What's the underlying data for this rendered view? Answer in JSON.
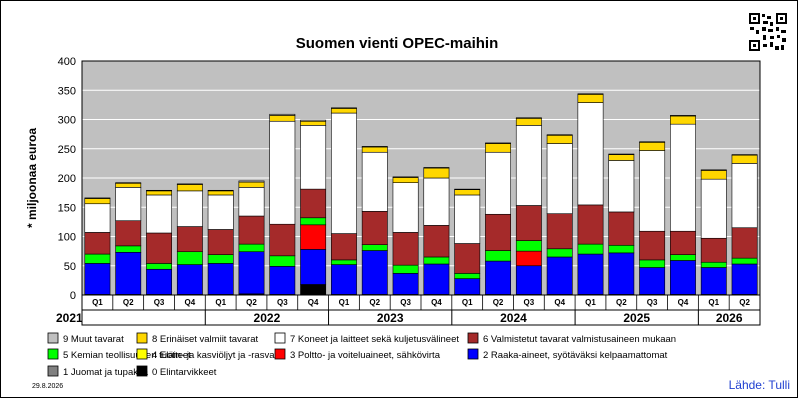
{
  "chart_data": {
    "type": "bar",
    "stacked": true,
    "title": "Suomen vienti OPEC-maihin",
    "ylabel": "* miljoonaa euroa",
    "xlabel": "",
    "ylim": [
      0,
      400
    ],
    "yticks": [
      0,
      50,
      100,
      150,
      200,
      250,
      300,
      350,
      400
    ],
    "grid": true,
    "legend_position": "bottom",
    "categories": [
      "Q1",
      "Q2",
      "Q3",
      "Q4",
      "Q1",
      "Q2",
      "Q3",
      "Q4",
      "Q1",
      "Q2",
      "Q3",
      "Q4",
      "Q1",
      "Q2",
      "Q3",
      "Q4",
      "Q1",
      "Q2",
      "Q3",
      "Q4",
      "Q1",
      "Q2"
    ],
    "years": [
      {
        "label": "2021",
        "start": 0,
        "span": 4
      },
      {
        "label": "2022",
        "start": 4,
        "span": 4
      },
      {
        "label": "2023",
        "start": 8,
        "span": 4
      },
      {
        "label": "2024",
        "start": 12,
        "span": 4
      },
      {
        "label": "2025",
        "start": 16,
        "span": 4
      },
      {
        "label": "2026",
        "start": 20,
        "span": 2
      }
    ],
    "series": [
      {
        "name": "0 Elintarvikkeet",
        "color": "#000000",
        "values": [
          1,
          1,
          1,
          1,
          1,
          2,
          1,
          18,
          1,
          1,
          1,
          1,
          1,
          1,
          1,
          1,
          1,
          1,
          1,
          1,
          1,
          1
        ]
      },
      {
        "name": "1 Juomat ja tupakka",
        "color": "#808080",
        "values": [
          0,
          0,
          0,
          0,
          0,
          0,
          0,
          0,
          0,
          0,
          0,
          0,
          0,
          0,
          0,
          0,
          0,
          0,
          0,
          0,
          0,
          0
        ]
      },
      {
        "name": "2 Raaka-aineet, syötäväksi kelpaamattomat",
        "color": "#0000ff",
        "values": [
          53,
          72,
          43,
          51,
          53,
          72,
          48,
          60,
          51,
          75,
          36,
          52,
          27,
          57,
          49,
          64,
          69,
          71,
          46,
          58,
          46,
          52
        ]
      },
      {
        "name": "3 Poltto- ja voiteluaineet, sähkövirta",
        "color": "#ff0000",
        "values": [
          0,
          0,
          0,
          0,
          0,
          0,
          0,
          42,
          0,
          0,
          0,
          0,
          0,
          0,
          25,
          0,
          0,
          0,
          0,
          0,
          0,
          0
        ]
      },
      {
        "name": "4 Eläin- ja kasviöljyt ja -rasvat",
        "color": "#ffff00",
        "values": [
          0,
          0,
          0,
          0,
          0,
          0,
          0,
          0,
          0,
          0,
          0,
          0,
          0,
          0,
          0,
          0,
          0,
          0,
          0,
          0,
          0,
          0
        ]
      },
      {
        "name": "5 Kemian teollisuuden tuotteet",
        "color": "#00ff00",
        "values": [
          16,
          11,
          10,
          22,
          15,
          13,
          18,
          12,
          8,
          10,
          14,
          12,
          9,
          18,
          18,
          14,
          17,
          13,
          13,
          10,
          9,
          10
        ]
      },
      {
        "name": "6 Valmistetut tavarat valmistusaineen mukaan",
        "color": "#a52a2a",
        "values": [
          37,
          43,
          52,
          43,
          43,
          48,
          54,
          49,
          45,
          57,
          56,
          54,
          51,
          62,
          60,
          60,
          67,
          57,
          49,
          40,
          41,
          52
        ]
      },
      {
        "name": "7 Koneet ja laitteet sekä kuljetusvälineet",
        "color": "#ffffff",
        "values": [
          49,
          57,
          65,
          61,
          59,
          49,
          176,
          109,
          206,
          101,
          85,
          81,
          83,
          106,
          137,
          120,
          175,
          88,
          138,
          183,
          101,
          110
        ]
      },
      {
        "name": "8 Erinäiset valmiit tavarat",
        "color": "#ffd700",
        "values": [
          9,
          7,
          7,
          11,
          7,
          9,
          10,
          7,
          8,
          9,
          9,
          17,
          9,
          15,
          12,
          14,
          14,
          10,
          14,
          14,
          15,
          14
        ]
      },
      {
        "name": "9 Muut tavarat",
        "color": "#c0c0c0",
        "values": [
          1,
          1,
          1,
          1,
          1,
          2,
          2,
          2,
          1,
          1,
          1,
          1,
          1,
          1,
          1,
          1,
          1,
          1,
          1,
          1,
          1,
          1
        ]
      }
    ],
    "legend": [
      {
        "name": "9 Muut tavarat",
        "color": "#c0c0c0"
      },
      {
        "name": "8 Erinäiset valmiit tavarat",
        "color": "#ffd700"
      },
      {
        "name": "7 Koneet ja laitteet sekä kuljetusvälineet",
        "color": "#ffffff"
      },
      {
        "name": "6 Valmistetut tavarat valmistusaineen mukaan",
        "color": "#a52a2a"
      },
      {
        "name": "5 Kemian teollisuuden tuotteet",
        "color": "#00ff00"
      },
      {
        "name": "4 Eläin- ja kasviöljyt ja -rasvat",
        "color": "#ffff00"
      },
      {
        "name": "3 Poltto- ja voiteluaineet, sähkövirta",
        "color": "#ff0000"
      },
      {
        "name": "2 Raaka-aineet, syötäväksi kelpaamattomat",
        "color": "#0000ff"
      },
      {
        "name": "1 Juomat ja tupakka",
        "color": "#808080"
      },
      {
        "name": "0 Elintarvikkeet",
        "color": "#000000"
      }
    ]
  },
  "footer": {
    "date": "29.8.2026",
    "source": "Lähde: Tulli"
  },
  "colors": {
    "plot_background": "#c0c0c0",
    "gridline": "#ffffff",
    "source_text": "#1f3fd0"
  }
}
